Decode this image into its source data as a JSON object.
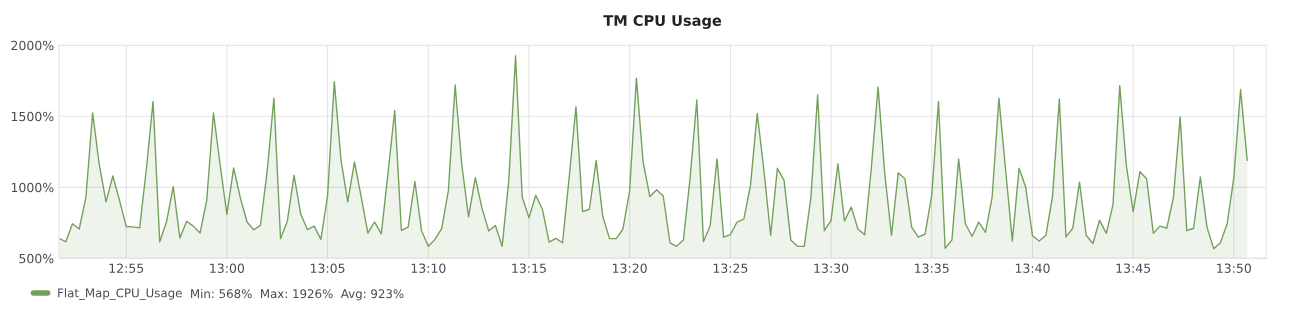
{
  "chart_data": {
    "type": "area",
    "title": "TM CPU Usage",
    "annotations": [
      "Min: 568%  Max: 1926%  Avg: 923%"
    ],
    "xlim": [
      12.8611,
      13.86
    ],
    "xticks": [
      {
        "value": 12.9167,
        "label": "12:55"
      },
      {
        "value": 13.0,
        "label": "13:00"
      },
      {
        "value": 13.0833,
        "label": "13:05"
      },
      {
        "value": 13.1667,
        "label": "13:10"
      },
      {
        "value": 13.25,
        "label": "13:15"
      },
      {
        "value": 13.3333,
        "label": "13:20"
      },
      {
        "value": 13.4167,
        "label": "13:25"
      },
      {
        "value": 13.5,
        "label": "13:30"
      },
      {
        "value": 13.5833,
        "label": "13:35"
      },
      {
        "value": 13.6667,
        "label": "13:40"
      },
      {
        "value": 13.75,
        "label": "13:45"
      },
      {
        "value": 13.8333,
        "label": "13:50"
      }
    ],
    "ylim": [
      500,
      2000
    ],
    "yticks": [
      {
        "value": 500,
        "label": "500%"
      },
      {
        "value": 1000,
        "label": "1000%"
      },
      {
        "value": 1500,
        "label": "1500%"
      },
      {
        "value": 2000,
        "label": "2000%"
      }
    ],
    "grid": true,
    "legend": "bottom left",
    "x": [
      12.8611,
      12.8667,
      12.8722,
      12.8778,
      12.8833,
      12.8889,
      12.8944,
      12.9,
      12.9056,
      12.9111,
      12.9167,
      12.9222,
      12.9278,
      12.9333,
      12.9389,
      12.9444,
      12.95,
      12.9556,
      12.9611,
      12.9667,
      12.9722,
      12.9778,
      12.9833,
      12.9889,
      12.9944,
      13.0,
      13.0056,
      13.0111,
      13.0167,
      13.0222,
      13.0278,
      13.0333,
      13.0389,
      13.0444,
      13.05,
      13.0556,
      13.0611,
      13.0667,
      13.0722,
      13.0778,
      13.0833,
      13.0889,
      13.0944,
      13.1,
      13.1056,
      13.1111,
      13.1167,
      13.1222,
      13.1278,
      13.1333,
      13.1389,
      13.1444,
      13.15,
      13.1556,
      13.1611,
      13.1667,
      13.1722,
      13.1778,
      13.1833,
      13.1889,
      13.1944,
      13.2,
      13.2056,
      13.2111,
      13.2167,
      13.2222,
      13.2278,
      13.2333,
      13.2389,
      13.2444,
      13.25,
      13.2556,
      13.2611,
      13.2667,
      13.2722,
      13.2778,
      13.2833,
      13.2889,
      13.2944,
      13.3,
      13.3056,
      13.3111,
      13.3167,
      13.3222,
      13.3278,
      13.3333,
      13.3389,
      13.3444,
      13.35,
      13.3556,
      13.3611,
      13.3667,
      13.3722,
      13.3778,
      13.3833,
      13.3889,
      13.3944,
      13.4,
      13.4056,
      13.4111,
      13.4167,
      13.4222,
      13.4278,
      13.4333,
      13.4389,
      13.4444,
      13.45,
      13.4556,
      13.4611,
      13.4667,
      13.4722,
      13.4778,
      13.4833,
      13.4889,
      13.4944,
      13.5,
      13.5056,
      13.5111,
      13.5167,
      13.5222,
      13.5278,
      13.5333,
      13.5389,
      13.5444,
      13.55,
      13.5556,
      13.5611,
      13.5667,
      13.5722,
      13.5778,
      13.5833,
      13.5889,
      13.5944,
      13.6,
      13.6056,
      13.6111,
      13.6167,
      13.6222,
      13.6278,
      13.6333,
      13.6389,
      13.6444,
      13.65,
      13.6556,
      13.6611,
      13.6667,
      13.6722,
      13.6778,
      13.6833,
      13.6889,
      13.6944,
      13.7,
      13.7056,
      13.7111,
      13.7167,
      13.7222,
      13.7278,
      13.7333,
      13.7389,
      13.7444,
      13.75,
      13.7556,
      13.7611,
      13.7667,
      13.7722,
      13.7778,
      13.7833,
      13.7889,
      13.7944,
      13.8,
      13.8056,
      13.8111,
      13.8167,
      13.8222,
      13.8278,
      13.8333,
      13.8389,
      13.8444
    ],
    "series": [
      {
        "name": "Flat_Map_CPU_Usage",
        "color": "#73a15c",
        "values": [
          641,
          617,
          744,
          707,
          927,
          1524,
          1159,
          898,
          1080,
          910,
          724,
          722,
          715,
          1122,
          1605,
          617,
          756,
          1005,
          644,
          761,
          727,
          678,
          907,
          1524,
          1159,
          810,
          1137,
          927,
          756,
          702,
          732,
          1110,
          1629,
          639,
          761,
          1085,
          812,
          702,
          727,
          634,
          939,
          1744,
          1195,
          898,
          1178,
          934,
          678,
          756,
          673,
          1098,
          1541,
          698,
          720,
          1041,
          695,
          585,
          634,
          712,
          976,
          1720,
          1159,
          793,
          1068,
          854,
          693,
          732,
          585,
          1049,
          1926,
          932,
          785,
          944,
          846,
          615,
          641,
          610,
          1073,
          1566,
          829,
          846,
          1188,
          793,
          639,
          639,
          707,
          976,
          1768,
          1183,
          934,
          983,
          939,
          610,
          585,
          629,
          1061,
          1615,
          617,
          732,
          1200,
          649,
          668,
          756,
          776,
          1012,
          1520,
          1122,
          663,
          1134,
          1049,
          629,
          585,
          585,
          927,
          1651,
          695,
          768,
          1166,
          763,
          861,
          707,
          666,
          1134,
          1707,
          1098,
          663,
          1102,
          1061,
          720,
          649,
          671,
          944,
          1605,
          571,
          629,
          1200,
          744,
          654,
          756,
          683,
          932,
          1627,
          1127,
          622,
          1134,
          1000,
          659,
          622,
          663,
          939,
          1622,
          651,
          712,
          1037,
          663,
          605,
          768,
          676,
          878,
          1715,
          1151,
          829,
          1110,
          1061,
          676,
          727,
          712,
          927,
          1495,
          695,
          712,
          1073,
          720,
          568,
          610,
          744,
          1066,
          1688,
          1190
        ]
      }
    ]
  }
}
